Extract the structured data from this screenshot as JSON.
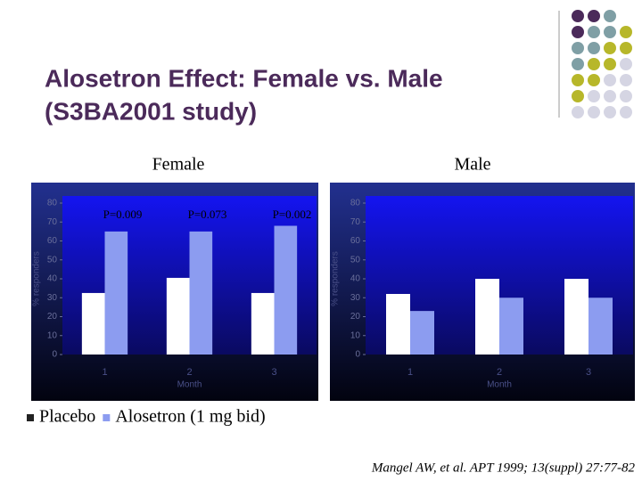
{
  "title": [
    "Alosetron Effect: Female vs. Male",
    "(S3BA2001 study)"
  ],
  "citation": "Mangel AW, et al. APT 1999; 13(suppl) 27:77-82",
  "chart_data": [
    {
      "type": "bar",
      "title": "Female",
      "xlabel": "Month",
      "ylabel": "% responders",
      "categories": [
        "1",
        "2",
        "3"
      ],
      "series": [
        {
          "name": "Placebo",
          "color": "#ffffff",
          "values": [
            32.5,
            40.5,
            32.5
          ]
        },
        {
          "name": "Alosetron (1 mg bid)",
          "color": "#8c9cf0",
          "values": [
            65,
            65,
            68
          ]
        }
      ],
      "annotations": [
        "P=0.009",
        "P=0.073",
        "P=0.002"
      ],
      "ylim": [
        0,
        80
      ],
      "yticks": [
        0,
        10,
        20,
        30,
        40,
        50,
        60,
        70,
        80
      ],
      "legend": "bottom"
    },
    {
      "type": "bar",
      "title": "Male",
      "xlabel": "Month",
      "ylabel": "% responders",
      "categories": [
        "1",
        "2",
        "3"
      ],
      "series": [
        {
          "color": "#ffffff",
          "values": [
            32,
            40,
            40
          ]
        },
        {
          "color": "#8c9cf0",
          "values": [
            23,
            30,
            30
          ]
        }
      ],
      "ylim": [
        0,
        80
      ],
      "yticks": [
        0,
        10,
        20,
        30,
        40,
        50,
        60,
        70,
        80
      ]
    }
  ]
}
